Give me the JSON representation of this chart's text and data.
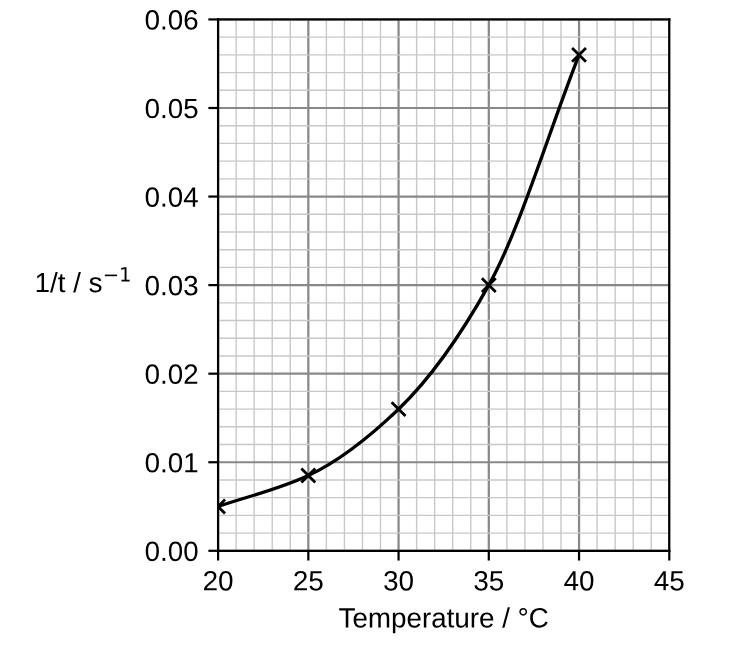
{
  "chart_data": {
    "type": "line",
    "xlabel": "Temperature / °C",
    "ylabel": "1/t / s$^{−1}$",
    "x": [
      20,
      25,
      30,
      35,
      40
    ],
    "series": [
      {
        "color": "#000000",
        "values": [
          0.005,
          0.0085,
          0.016,
          0.03,
          0.056
        ]
      }
    ],
    "xlim": [
      20,
      45
    ],
    "xticks": [
      20,
      25,
      30,
      35,
      40,
      45
    ],
    "ylim": [
      0,
      0.06
    ],
    "yticks": [
      {
        "value": 0,
        "label": "0.00"
      },
      {
        "value": 0.01,
        "label": "0.01"
      },
      {
        "value": 0.02,
        "label": "0.02"
      },
      {
        "value": 0.03,
        "label": "0.03"
      },
      {
        "value": 0.04,
        "label": "0.04"
      },
      {
        "value": 0.05,
        "label": "0.05"
      },
      {
        "value": 0.06,
        "label": "0.06"
      }
    ],
    "grid": true,
    "marker": "cross",
    "line_style": "solid"
  }
}
